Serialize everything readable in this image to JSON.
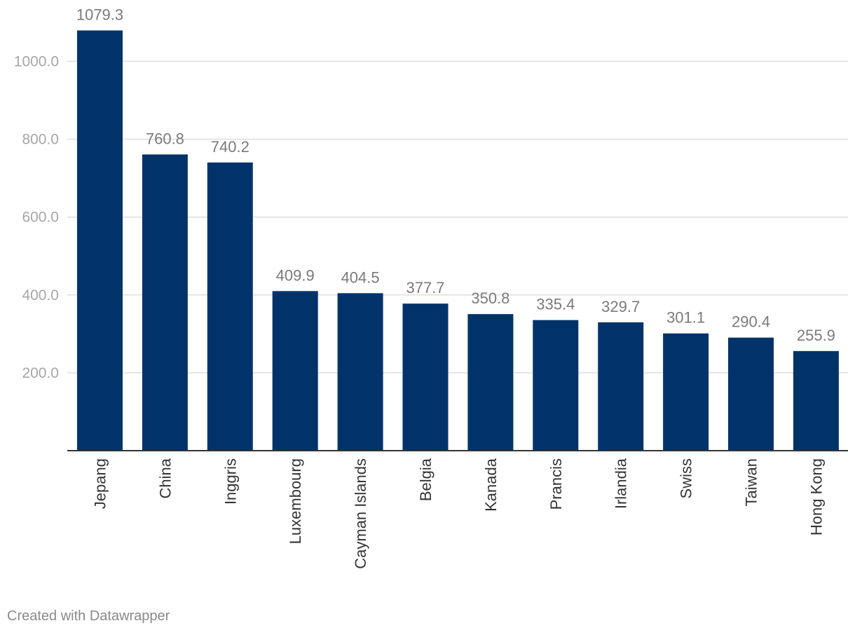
{
  "chart_data": {
    "type": "bar",
    "categories": [
      "Jepang",
      "China",
      "Inggris",
      "Luxembourg",
      "Cayman Islands",
      "Belgia",
      "Kanada",
      "Prancis",
      "Irlandia",
      "Swiss",
      "Taiwan",
      "Hong Kong"
    ],
    "values": [
      1079.3,
      760.8,
      740.2,
      409.9,
      404.5,
      377.7,
      350.8,
      335.4,
      329.7,
      301.1,
      290.4,
      255.9
    ],
    "value_labels": [
      "1079.3",
      "760.8",
      "740.2",
      "409.9",
      "404.5",
      "377.7",
      "350.8",
      "335.4",
      "329.7",
      "301.1",
      "290.4",
      "255.9"
    ],
    "y_ticks": [
      200,
      400,
      600,
      800,
      1000
    ],
    "y_tick_labels": [
      "200.0",
      "400.0",
      "600.0",
      "800.0",
      "1000.0"
    ],
    "ylim": [
      0,
      1150
    ],
    "grid": true,
    "bar_color": "#01336a",
    "title": "",
    "xlabel": "",
    "ylabel": ""
  },
  "footer": {
    "credit": "Created with Datawrapper"
  }
}
